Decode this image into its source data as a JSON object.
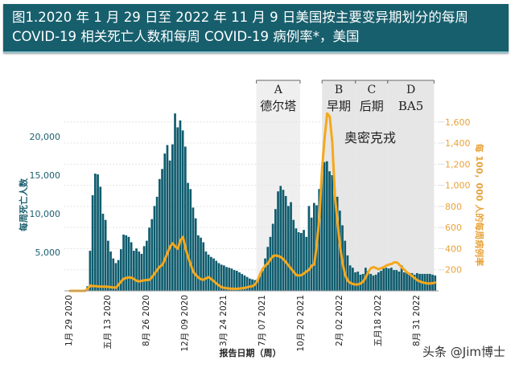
{
  "header": {
    "line1": "图1.2020 年 1 月 29 日至 2022 年 11 月 9 日美国按主要变异期划分的每周",
    "line2": "COVID-19 相关死亡人数和每周 COVID-19 病例率*，美国"
  },
  "watermark": "头条 @Jim博士",
  "chart_data": {
    "type": "bar+line",
    "xlabel": "报告日期（周）",
    "ylabel_left": "每周死亡人数",
    "ylabel_right": "每 100，000 人的每周病例率",
    "x_ticks": [
      {
        "week": 0,
        "label": "1月 29 2020"
      },
      {
        "week": 15,
        "label": "五月 13 2020"
      },
      {
        "week": 30,
        "label": "8月 26 2020"
      },
      {
        "week": 45,
        "label": "12月 09 2020"
      },
      {
        "week": 60,
        "label": "3月 24 2021"
      },
      {
        "week": 75,
        "label": "7月 07 2021"
      },
      {
        "week": 90,
        "label": "10月 20 2021"
      },
      {
        "week": 105,
        "label": "2月 02 2022"
      },
      {
        "week": 120,
        "label": "五月18 2022"
      },
      {
        "week": 135,
        "label": "8月 31 2022"
      }
    ],
    "left_ticks": [
      {
        "v": 5000,
        "label": "5,000"
      },
      {
        "v": 10000,
        "label": "10,000"
      },
      {
        "v": 15000,
        "label": "15,000"
      },
      {
        "v": 20000,
        "label": "20,000"
      }
    ],
    "right_ticks": [
      {
        "v": 200,
        "label": "200"
      },
      {
        "v": 400,
        "label": "400"
      },
      {
        "v": 600,
        "label": "600"
      },
      {
        "v": 800,
        "label": "800"
      },
      {
        "v": 1000,
        "label": "1,000"
      },
      {
        "v": 1200,
        "label": "1,200"
      },
      {
        "v": 1400,
        "label": "1,400"
      },
      {
        "v": 1600,
        "label": "1,600"
      }
    ],
    "ylim_left": [
      0,
      23500
    ],
    "ylim_right": [
      0,
      1800
    ],
    "grid": true,
    "colors": {
      "deaths": "#0f5c6e",
      "cases": "#f5a81c",
      "band": "#ebebeb",
      "right_axis": "#e8a23a"
    },
    "periods": [
      {
        "letter": "A",
        "name": "德尔塔",
        "start_week": 73,
        "end_week": 90
      },
      {
        "letter": "B",
        "name": "早期",
        "start_week": 98.5,
        "end_week": 111.5
      },
      {
        "letter": "C",
        "name": "后期",
        "start_week": 111.5,
        "end_week": 124
      },
      {
        "letter": "D",
        "name": "BA5",
        "start_week": 124,
        "end_week": 142
      }
    ],
    "omicron_label": "奥密克戎",
    "series": [
      {
        "name": "每周死亡人数",
        "axis": "left",
        "kind": "bar",
        "values": [
          0,
          0,
          0,
          0,
          0,
          0,
          0,
          600,
          5200,
          12400,
          15200,
          15100,
          13500,
          10000,
          9200,
          6500,
          5100,
          4200,
          3600,
          4000,
          5400,
          7300,
          7200,
          7000,
          6300,
          5200,
          5500,
          5100,
          4800,
          5800,
          6500,
          8200,
          9300,
          11000,
          12200,
          14500,
          15800,
          17800,
          18900,
          16900,
          19000,
          23000,
          21200,
          22100,
          20800,
          18700,
          14000,
          13200,
          10800,
          9400,
          7200,
          6900,
          6300,
          5100,
          4700,
          4400,
          4200,
          3900,
          3600,
          3400,
          3300,
          3100,
          3000,
          2900,
          2700,
          2600,
          2400,
          2200,
          2000,
          1800,
          1600,
          1500,
          1400,
          1500,
          2000,
          2600,
          4200,
          5700,
          7000,
          8700,
          10600,
          12900,
          13600,
          13100,
          12300,
          11000,
          11500,
          9200,
          8100,
          7600,
          7500,
          7900,
          7000,
          11000,
          9500,
          11400,
          11100,
          13200,
          15000,
          16700,
          16800,
          15500,
          15000,
          13100,
          12200,
          10400,
          8500,
          6500,
          4600,
          3300,
          3000,
          2400,
          2500,
          2100,
          2200,
          3000,
          2600,
          2200,
          2000,
          2100,
          2400,
          2600,
          2900,
          3000,
          2900,
          3000,
          2700,
          2700,
          2500,
          3300,
          2400,
          2400,
          2300,
          2300,
          2100,
          2300,
          2200,
          2200,
          2200,
          2200,
          2200,
          2100,
          2000
        ]
      },
      {
        "name": "每 100，000 人的每周病例率",
        "axis": "right",
        "kind": "line",
        "values": [
          0,
          0,
          0,
          0,
          0,
          0,
          0,
          20,
          50,
          45,
          45,
          42,
          40,
          40,
          40,
          38,
          35,
          32,
          30,
          60,
          90,
          115,
          122,
          128,
          125,
          110,
          95,
          90,
          95,
          100,
          103,
          105,
          130,
          165,
          200,
          230,
          245,
          300,
          360,
          420,
          450,
          420,
          400,
          480,
          510,
          400,
          320,
          250,
          180,
          150,
          125,
          110,
          105,
          120,
          130,
          110,
          92,
          70,
          50,
          35,
          28,
          25,
          22,
          20,
          20,
          20,
          22,
          25,
          28,
          35,
          40,
          45,
          60,
          100,
          160,
          210,
          240,
          260,
          300,
          330,
          335,
          330,
          320,
          300,
          270,
          240,
          210,
          180,
          150,
          145,
          150,
          165,
          185,
          200,
          240,
          250,
          450,
          700,
          1150,
          1450,
          1680,
          1650,
          1400,
          900,
          650,
          420,
          260,
          150,
          95,
          75,
          65,
          60,
          62,
          70,
          90,
          130,
          180,
          215,
          225,
          215,
          205,
          215,
          225,
          240,
          250,
          255,
          270,
          270,
          250,
          220,
          200,
          175,
          160,
          140,
          120,
          100,
          90,
          80,
          75,
          70,
          70,
          72,
          80
        ]
      }
    ]
  }
}
